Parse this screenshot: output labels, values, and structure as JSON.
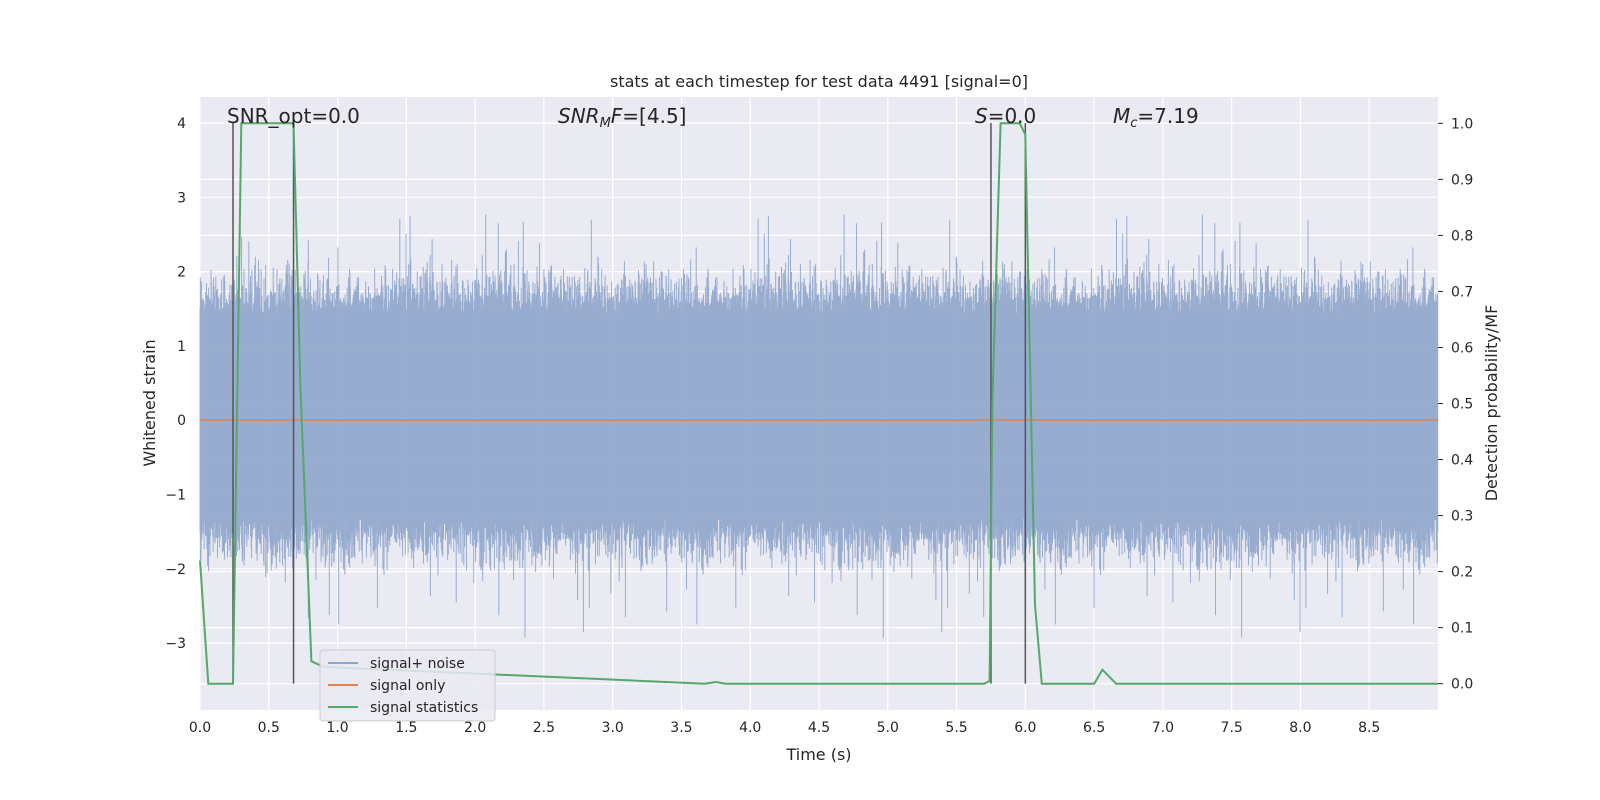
{
  "chart_data": {
    "type": "line",
    "title": "stats at each timestep for test data 4491 [signal=0]",
    "xlabel": "Time (s)",
    "ylabel": "Whitened strain",
    "ylabel_right": "Detection probability/MF",
    "xlim": [
      0,
      9.0
    ],
    "ylim": [
      -3.9,
      4.35
    ],
    "ylim_right": [
      -0.047,
      1.047
    ],
    "xticks": [
      "0.0",
      "0.5",
      "1.0",
      "1.5",
      "2.0",
      "2.5",
      "3.0",
      "3.5",
      "4.0",
      "4.5",
      "5.0",
      "5.5",
      "6.0",
      "6.5",
      "7.0",
      "7.5",
      "8.0",
      "8.5"
    ],
    "xtick_values": [
      0,
      0.5,
      1,
      1.5,
      2,
      2.5,
      3,
      3.5,
      4,
      4.5,
      5,
      5.5,
      6,
      6.5,
      7,
      7.5,
      8,
      8.5
    ],
    "yticks": [
      "−3",
      "−2",
      "−1",
      "0",
      "1",
      "2",
      "3",
      "4"
    ],
    "ytick_values": [
      -3,
      -2,
      -1,
      0,
      1,
      2,
      3,
      4
    ],
    "yticks_right": [
      "0.0",
      "0.1",
      "0.2",
      "0.3",
      "0.4",
      "0.5",
      "0.6",
      "0.7",
      "0.8",
      "0.9",
      "1.0"
    ],
    "ytick_values_right": [
      0,
      0.1,
      0.2,
      0.3,
      0.4,
      0.5,
      0.6,
      0.7,
      0.8,
      0.9,
      1.0
    ],
    "grid": true,
    "legend_position": "lower-left",
    "annotations": {
      "snr_opt": "SNR_opt=0.0",
      "snr_mf": "=[4.5]",
      "snr_mf_main": "SNR",
      "snr_mf_sub": "M",
      "snr_mf_f": "F",
      "s_stat": "=0.0",
      "s_stat_main": "S",
      "mc": "=7.19",
      "mc_main": "M",
      "mc_sub": "c"
    },
    "series": [
      {
        "name": "signal+ noise",
        "color": "#8fa5cc",
        "axis": "left",
        "kind": "noise",
        "description_values": {
          "typical_envelope": [
            -1.3,
            1.4
          ],
          "peak_max": 4.0,
          "peak_min": -3.3
        }
      },
      {
        "name": "signal only",
        "color": "#dd8452",
        "axis": "left",
        "x": [
          0,
          9.0
        ],
        "y": [
          0,
          0
        ]
      },
      {
        "name": "signal statistics",
        "color": "#55a868",
        "axis": "right",
        "x": [
          0,
          0.06,
          0.24,
          0.3,
          0.68,
          0.73,
          0.81,
          0.9,
          3.67,
          3.75,
          3.82,
          5.7,
          5.74,
          5.76,
          5.82,
          5.96,
          6.0,
          6.07,
          6.12,
          6.5,
          6.56,
          6.66,
          9.0
        ],
        "y": [
          0.22,
          0.0,
          0.0,
          1.0,
          1.0,
          0.53,
          0.04,
          0.03,
          0.0,
          0.003,
          0.0,
          0.0,
          0.005,
          0.5,
          1.0,
          1.0,
          0.98,
          0.14,
          0.0,
          0.0,
          0.025,
          0.0,
          0.0
        ]
      }
    ],
    "vlines": [
      0.24,
      0.68,
      5.75,
      6.0
    ],
    "vline_color": "#555555"
  }
}
